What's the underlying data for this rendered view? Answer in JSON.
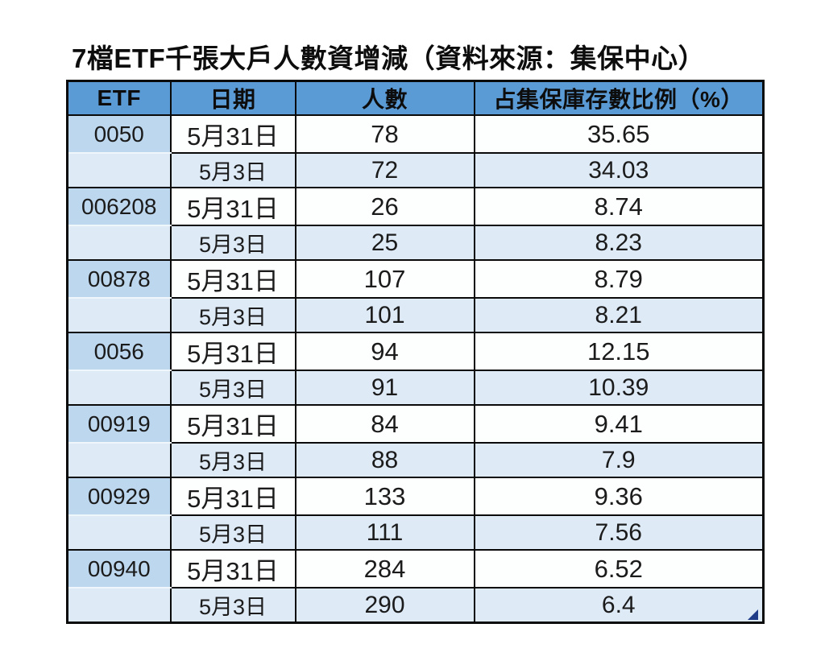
{
  "title": "7檔ETF千張大戶人數資增減（資料來源：集保中心）",
  "colors": {
    "header_bg": "#5B9BD5",
    "etf_code_cell_bg": "#BDD7EE",
    "banded_row_bg": "#DEEAF6",
    "plain_row_bg": "#FDFEFE",
    "border": "#0a0a0a",
    "corner_handle": "#1F3C88"
  },
  "chart_data": {
    "type": "table",
    "title": "7檔ETF千張大戶人數資增減（資料來源：集保中心）",
    "columns": [
      "ETF",
      "日期",
      "人數",
      "占集保庫存數比例（%）"
    ],
    "groups": [
      {
        "etf": "0050",
        "rows": [
          [
            "5月31日",
            "78",
            "35.65"
          ],
          [
            "5月3日",
            "72",
            "34.03"
          ]
        ]
      },
      {
        "etf": "006208",
        "rows": [
          [
            "5月31日",
            "26",
            "8.74"
          ],
          [
            "5月3日",
            "25",
            "8.23"
          ]
        ]
      },
      {
        "etf": "00878",
        "rows": [
          [
            "5月31日",
            "107",
            "8.79"
          ],
          [
            "5月3日",
            "101",
            "8.21"
          ]
        ]
      },
      {
        "etf": "0056",
        "rows": [
          [
            "5月31日",
            "94",
            "12.15"
          ],
          [
            "5月3日",
            "91",
            "10.39"
          ]
        ]
      },
      {
        "etf": "00919",
        "rows": [
          [
            "5月31日",
            "84",
            "9.41"
          ],
          [
            "5月3日",
            "88",
            "7.9"
          ]
        ]
      },
      {
        "etf": "00929",
        "rows": [
          [
            "5月31日",
            "133",
            "9.36"
          ],
          [
            "5月3日",
            "111",
            "7.56"
          ]
        ]
      },
      {
        "etf": "00940",
        "rows": [
          [
            "5月31日",
            "284",
            "6.52"
          ],
          [
            "5月3日",
            "290",
            "6.4"
          ]
        ]
      }
    ]
  }
}
